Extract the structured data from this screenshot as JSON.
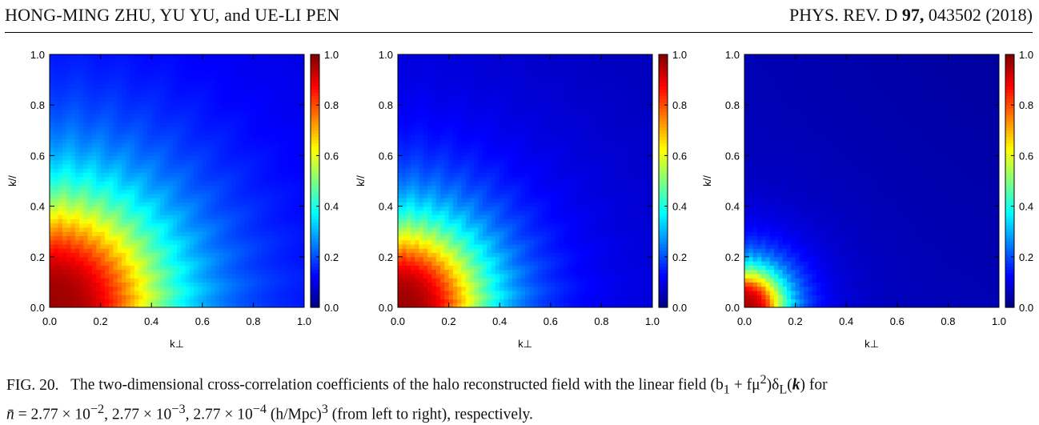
{
  "header": {
    "authors": "HONG-MING ZHU, YU YU, and UE-LI PEN",
    "journal_name": "PHYS. REV. D",
    "volume": "97,",
    "article": "043502 (2018)"
  },
  "chart_data": [
    {
      "type": "heatmap",
      "xlabel": "k⊥",
      "ylabel": "k//",
      "xlim": [
        0.0,
        1.0
      ],
      "ylim": [
        0.0,
        1.0
      ],
      "x_ticks": [
        "0.0",
        "0.2",
        "0.4",
        "0.6",
        "0.8",
        "1.0"
      ],
      "y_ticks": [
        "0.0",
        "0.2",
        "0.4",
        "0.6",
        "0.8",
        "1.0"
      ],
      "colorbar": {
        "range": [
          0.0,
          1.0
        ],
        "ticks": [
          "0.0",
          "0.2",
          "0.4",
          "0.6",
          "0.8",
          "1.0"
        ],
        "colormap": "jet"
      },
      "field": {
        "peak": 0.97,
        "half_radius": 0.42,
        "floor": 0.1
      }
    },
    {
      "type": "heatmap",
      "xlabel": "k⊥",
      "ylabel": "k//",
      "xlim": [
        0.0,
        1.0
      ],
      "ylim": [
        0.0,
        1.0
      ],
      "x_ticks": [
        "0.0",
        "0.2",
        "0.4",
        "0.6",
        "0.8",
        "1.0"
      ],
      "y_ticks": [
        "0.0",
        "0.2",
        "0.4",
        "0.6",
        "0.8",
        "1.0"
      ],
      "colorbar": {
        "range": [
          0.0,
          1.0
        ],
        "ticks": [
          "0.0",
          "0.2",
          "0.4",
          "0.6",
          "0.8",
          "1.0"
        ],
        "colormap": "jet"
      },
      "field": {
        "peak": 0.97,
        "half_radius": 0.32,
        "floor": 0.07
      }
    },
    {
      "type": "heatmap",
      "xlabel": "k⊥",
      "ylabel": "k//",
      "xlim": [
        0.0,
        1.0
      ],
      "ylim": [
        0.0,
        1.0
      ],
      "x_ticks": [
        "0.0",
        "0.2",
        "0.4",
        "0.6",
        "0.8",
        "1.0"
      ],
      "y_ticks": [
        "0.0",
        "0.2",
        "0.4",
        "0.6",
        "0.8",
        "1.0"
      ],
      "colorbar": {
        "range": [
          0.0,
          1.0
        ],
        "ticks": [
          "0.0",
          "0.2",
          "0.4",
          "0.6",
          "0.8",
          "1.0"
        ],
        "colormap": "jet"
      },
      "field": {
        "peak": 0.95,
        "half_radius": 0.15,
        "floor": 0.05
      }
    }
  ],
  "caption": {
    "label": "FIG. 20.",
    "text_1": "The two-dimensional cross-correlation coefficients of the halo reconstructed field with the linear field (b",
    "sub_1": "1",
    "text_2": " + fμ",
    "sup_2": "2",
    "text_3": ")δ",
    "sub_L": "L",
    "text_4": "(",
    "bold_k": "k",
    "text_5": ") for",
    "nbar": "n̄",
    "line2_a": " = 2.77 × 10",
    "exp_a": "−2",
    "line2_b": ", 2.77 × 10",
    "exp_b": "−3",
    "line2_c": ", 2.77 × 10",
    "exp_c": "−4",
    "units": " (h/Mpc)",
    "exp_units": "3",
    "line2_end": " (from left to right), respectively."
  },
  "colors": {
    "frame": "#000000",
    "background": "#ffffff"
  }
}
